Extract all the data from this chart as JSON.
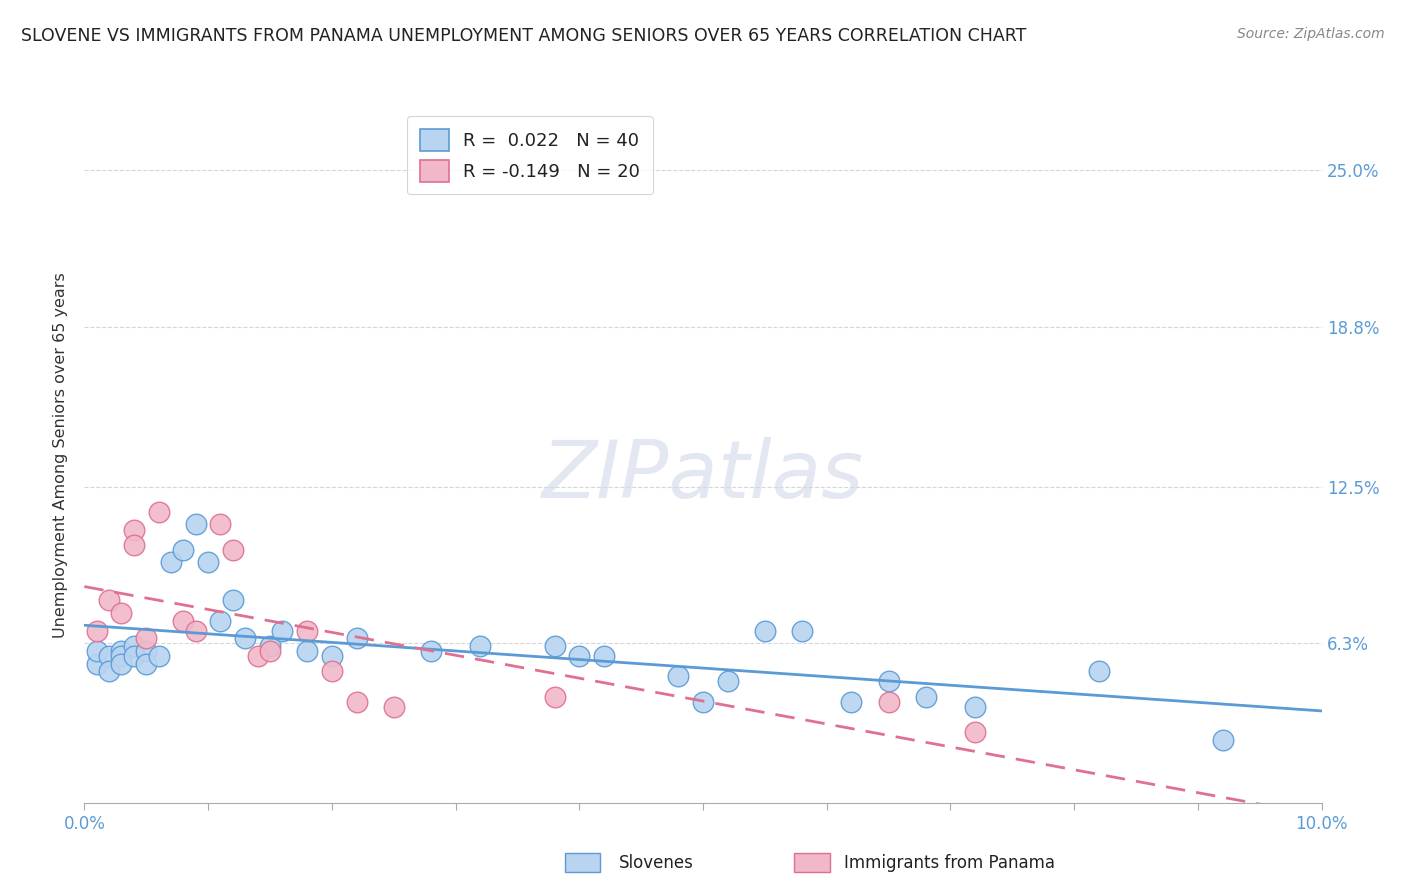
{
  "title": "SLOVENE VS IMMIGRANTS FROM PANAMA UNEMPLOYMENT AMONG SENIORS OVER 65 YEARS CORRELATION CHART",
  "source": "Source: ZipAtlas.com",
  "ylabel": "Unemployment Among Seniors over 65 years",
  "xmin": 0.0,
  "xmax": 0.1,
  "ymin": 0.0,
  "ymax": 0.275,
  "yticks": [
    0.063,
    0.125,
    0.188,
    0.25
  ],
  "ytick_labels": [
    "6.3%",
    "12.5%",
    "18.8%",
    "25.0%"
  ],
  "r_slovene": 0.022,
  "n_slovene": 40,
  "r_panama": -0.149,
  "n_panama": 20,
  "slovene_color": "#b8d4f0",
  "panama_color": "#f0b8c8",
  "slovene_edge_color": "#5b9bd5",
  "panama_edge_color": "#e07090",
  "slovene_line_color": "#5b9bd5",
  "panama_line_color": "#e07090",
  "watermark_text": "ZIPatlas",
  "background_color": "#ffffff",
  "grid_color": "#cccccc",
  "slovene_points": [
    [
      0.001,
      0.055
    ],
    [
      0.001,
      0.06
    ],
    [
      0.002,
      0.058
    ],
    [
      0.002,
      0.052
    ],
    [
      0.003,
      0.06
    ],
    [
      0.003,
      0.058
    ],
    [
      0.003,
      0.055
    ],
    [
      0.004,
      0.062
    ],
    [
      0.004,
      0.058
    ],
    [
      0.005,
      0.06
    ],
    [
      0.005,
      0.055
    ],
    [
      0.006,
      0.058
    ],
    [
      0.007,
      0.095
    ],
    [
      0.008,
      0.1
    ],
    [
      0.009,
      0.11
    ],
    [
      0.01,
      0.095
    ],
    [
      0.011,
      0.072
    ],
    [
      0.012,
      0.08
    ],
    [
      0.013,
      0.065
    ],
    [
      0.015,
      0.062
    ],
    [
      0.016,
      0.068
    ],
    [
      0.018,
      0.06
    ],
    [
      0.02,
      0.058
    ],
    [
      0.022,
      0.065
    ],
    [
      0.028,
      0.06
    ],
    [
      0.032,
      0.062
    ],
    [
      0.038,
      0.062
    ],
    [
      0.04,
      0.058
    ],
    [
      0.042,
      0.058
    ],
    [
      0.048,
      0.05
    ],
    [
      0.05,
      0.04
    ],
    [
      0.052,
      0.048
    ],
    [
      0.055,
      0.068
    ],
    [
      0.058,
      0.068
    ],
    [
      0.062,
      0.04
    ],
    [
      0.065,
      0.048
    ],
    [
      0.068,
      0.042
    ],
    [
      0.072,
      0.038
    ],
    [
      0.082,
      0.052
    ],
    [
      0.092,
      0.025
    ]
  ],
  "panama_points": [
    [
      0.001,
      0.068
    ],
    [
      0.002,
      0.08
    ],
    [
      0.003,
      0.075
    ],
    [
      0.004,
      0.108
    ],
    [
      0.004,
      0.102
    ],
    [
      0.005,
      0.065
    ],
    [
      0.006,
      0.115
    ],
    [
      0.008,
      0.072
    ],
    [
      0.009,
      0.068
    ],
    [
      0.011,
      0.11
    ],
    [
      0.012,
      0.1
    ],
    [
      0.014,
      0.058
    ],
    [
      0.015,
      0.06
    ],
    [
      0.018,
      0.068
    ],
    [
      0.02,
      0.052
    ],
    [
      0.022,
      0.04
    ],
    [
      0.025,
      0.038
    ],
    [
      0.038,
      0.042
    ],
    [
      0.065,
      0.04
    ],
    [
      0.072,
      0.028
    ]
  ]
}
